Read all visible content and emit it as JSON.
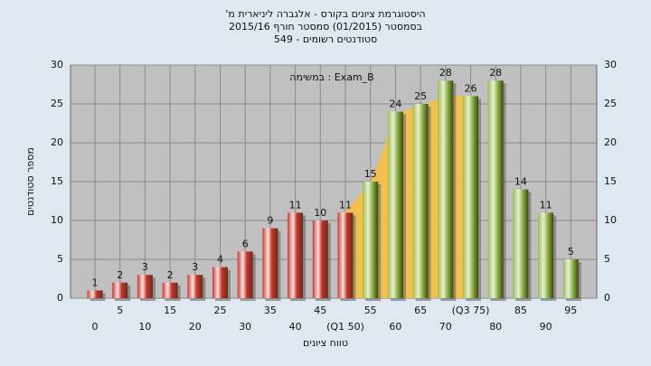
{
  "chart_data": {
    "type": "bar",
    "title": [
      "היסטוגרמת ציונים בקורס - אלגברה ליניארית מ'",
      "בסמסטר  (01/2015)  סמסטר חורף 2015/16",
      "סטודנטים רשומים - 549"
    ],
    "annotation": "במשימה : Exam_B",
    "xlabel": "טווח ציונים",
    "ylabel": "מספר סטודנטים",
    "categories": [
      "0",
      "5",
      "10",
      "15",
      "20",
      "25",
      "30",
      "35",
      "40",
      "45",
      "(Q1 50)",
      "55",
      "60",
      "65",
      "70",
      "(Q3 75)",
      "80",
      "85",
      "90",
      "95"
    ],
    "values": [
      1,
      2,
      3,
      2,
      3,
      4,
      6,
      9,
      11,
      10,
      11,
      15,
      24,
      25,
      28,
      26,
      28,
      14,
      11,
      5
    ],
    "colors": [
      "#e02828",
      "#e02828",
      "#e02828",
      "#e02828",
      "#e02828",
      "#e02828",
      "#e02828",
      "#e02828",
      "#e02828",
      "#e02828",
      "#e02828",
      "#8fc040",
      "#8fc040",
      "#8fc040",
      "#8fc040",
      "#8fc040",
      "#8fc040",
      "#8fc040",
      "#8fc040",
      "#8fc040"
    ],
    "ylim": [
      0,
      30
    ],
    "yticks": [
      0,
      5,
      10,
      15,
      20,
      25,
      30
    ],
    "grid": true
  }
}
